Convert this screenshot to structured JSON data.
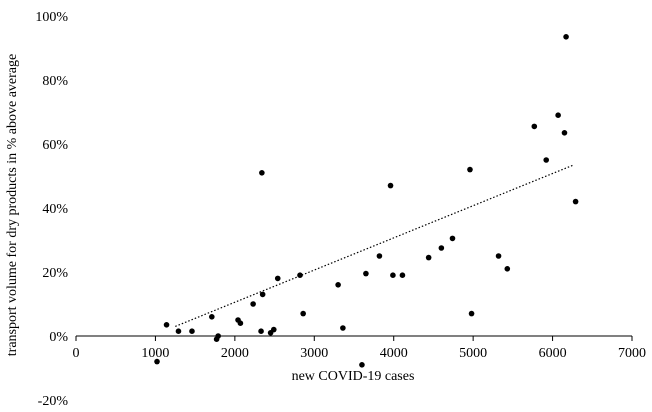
{
  "chart_data": {
    "type": "scatter",
    "title": "",
    "xlabel": "new COVID-19 cases",
    "ylabel": "transport volume for dry products in % above average",
    "xlim": [
      0,
      7000
    ],
    "ylim": [
      -20,
      100
    ],
    "xticks": [
      0,
      1000,
      2000,
      3000,
      4000,
      5000,
      6000,
      7000
    ],
    "yticks": [
      -20,
      0,
      20,
      40,
      60,
      80,
      100
    ],
    "xtick_labels": [
      "0",
      "1000",
      "2000",
      "3000",
      "4000",
      "5000",
      "6000",
      "7000"
    ],
    "ytick_labels": [
      "-20%",
      "0%",
      "20%",
      "40%",
      "60%",
      "80%",
      "100%"
    ],
    "grid": false,
    "legend": "none",
    "marker_color": "#000000",
    "trendline": {
      "type": "linear",
      "style": "dotted",
      "from": [
        1250,
        3
      ],
      "to": [
        6270,
        53.5
      ]
    },
    "points": [
      [
        1020,
        -8
      ],
      [
        1140,
        3.5
      ],
      [
        1290,
        1.5
      ],
      [
        1460,
        1.5
      ],
      [
        1710,
        6
      ],
      [
        1770,
        -1
      ],
      [
        1790,
        0
      ],
      [
        2040,
        5
      ],
      [
        2070,
        4
      ],
      [
        2230,
        10
      ],
      [
        2330,
        1.5
      ],
      [
        2350,
        13
      ],
      [
        2340,
        51
      ],
      [
        2450,
        1
      ],
      [
        2490,
        2
      ],
      [
        2540,
        18
      ],
      [
        2820,
        19
      ],
      [
        2860,
        7
      ],
      [
        3300,
        16
      ],
      [
        3360,
        2.5
      ],
      [
        3600,
        -9
      ],
      [
        3650,
        19.5
      ],
      [
        3820,
        25
      ],
      [
        3960,
        47
      ],
      [
        3990,
        19
      ],
      [
        4110,
        19
      ],
      [
        4440,
        24.5
      ],
      [
        4600,
        27.5
      ],
      [
        4740,
        30.5
      ],
      [
        4960,
        52
      ],
      [
        4980,
        7
      ],
      [
        5320,
        25
      ],
      [
        5430,
        21
      ],
      [
        5770,
        65.5
      ],
      [
        5920,
        55
      ],
      [
        6070,
        69
      ],
      [
        6150,
        63.5
      ],
      [
        6170,
        93.5
      ],
      [
        6290,
        42
      ]
    ]
  }
}
